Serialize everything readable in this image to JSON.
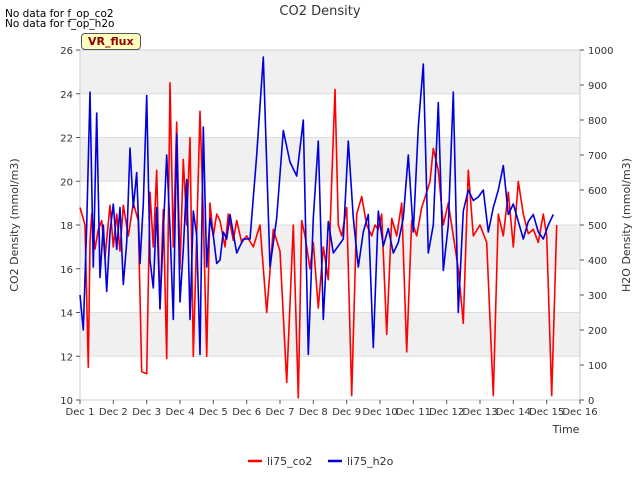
{
  "notes": [
    "No data for f_op_co2",
    "No data for f_op_h2o"
  ],
  "badge": "VR_flux",
  "chart_data": {
    "type": "line",
    "title": "CO2 Density",
    "xlabel": "Time",
    "ylabel": "CO2 Density (mmol/m3)",
    "ylabel_right": "H2O Density (mmol/m3)",
    "xlim": [
      1,
      16
    ],
    "ylim": [
      10,
      26
    ],
    "ylim_right": [
      0,
      1000
    ],
    "x_ticks": [
      "Dec 1",
      "Dec 2",
      "Dec 3",
      "Dec 4",
      "Dec 5",
      "Dec 6",
      "Dec 7",
      "Dec 8",
      "Dec 9",
      "Dec 10",
      "Dec 11",
      "Dec 12",
      "Dec 13",
      "Dec 14",
      "Dec 15",
      "Dec 16"
    ],
    "y_ticks": [
      10,
      12,
      14,
      16,
      18,
      20,
      22,
      24,
      26
    ],
    "y_ticks_right": [
      0,
      100,
      200,
      300,
      400,
      500,
      600,
      700,
      800,
      900,
      1000
    ],
    "grid": true,
    "background_bands": true,
    "legend": "bottom-center",
    "series": [
      {
        "name": "li75_co2",
        "axis": "left",
        "color": "#ff0000",
        "x": [
          1.0,
          1.15,
          1.25,
          1.3,
          1.35,
          1.45,
          1.55,
          1.65,
          1.75,
          1.9,
          2.0,
          2.1,
          2.2,
          2.3,
          2.45,
          2.6,
          2.75,
          2.85,
          3.0,
          3.1,
          3.2,
          3.3,
          3.4,
          3.5,
          3.6,
          3.7,
          3.8,
          3.9,
          4.0,
          4.1,
          4.2,
          4.3,
          4.4,
          4.5,
          4.6,
          4.7,
          4.8,
          4.9,
          5.0,
          5.1,
          5.2,
          5.35,
          5.45,
          5.6,
          5.7,
          5.85,
          6.0,
          6.2,
          6.4,
          6.6,
          6.8,
          7.0,
          7.2,
          7.4,
          7.55,
          7.65,
          7.75,
          7.9,
          8.0,
          8.15,
          8.3,
          8.45,
          8.55,
          8.65,
          8.75,
          8.85,
          9.0,
          9.15,
          9.3,
          9.45,
          9.6,
          9.75,
          9.85,
          9.95,
          10.05,
          10.2,
          10.35,
          10.5,
          10.65,
          10.8,
          10.95,
          11.1,
          11.25,
          11.4,
          11.5,
          11.6,
          11.75,
          11.9,
          12.05,
          12.2,
          12.35,
          12.5,
          12.65,
          12.8,
          13.0,
          13.2,
          13.4,
          13.55,
          13.7,
          13.85,
          14.0,
          14.15,
          14.3,
          14.45,
          14.6,
          14.75,
          14.9,
          15.0,
          15.15,
          15.3
        ],
        "y": [
          18.8,
          18.0,
          11.5,
          17.2,
          18.5,
          16.9,
          17.8,
          18.2,
          16.5,
          18.9,
          17.0,
          18.5,
          16.8,
          18.9,
          17.5,
          19.0,
          18.2,
          11.3,
          11.2,
          19.5,
          17.0,
          20.5,
          14.2,
          18.7,
          11.9,
          24.5,
          17.0,
          22.7,
          16.0,
          21.0,
          18.0,
          22.0,
          12.0,
          17.5,
          23.2,
          18.5,
          12.0,
          19.0,
          17.5,
          18.5,
          18.2,
          17.0,
          18.5,
          17.3,
          18.2,
          17.2,
          17.5,
          17.0,
          18.0,
          14.0,
          17.8,
          16.8,
          10.8,
          18.0,
          10.1,
          18.2,
          17.5,
          16.0,
          17.2,
          14.2,
          17.0,
          15.5,
          20.0,
          24.2,
          18.0,
          17.5,
          18.8,
          10.2,
          18.5,
          19.3,
          18.0,
          17.5,
          18.0,
          17.8,
          18.5,
          13.0,
          18.3,
          17.5,
          19.0,
          12.2,
          18.2,
          17.5,
          18.8,
          19.5,
          20.0,
          21.5,
          20.5,
          18.0,
          19.0,
          17.5,
          16.0,
          13.5,
          20.5,
          17.5,
          18.0,
          17.2,
          10.2,
          18.5,
          17.5,
          19.5,
          17.0,
          20.0,
          18.5,
          17.6,
          17.8,
          17.2,
          18.5,
          17.5,
          10.2,
          18.0
        ]
      },
      {
        "name": "li75_h2o",
        "axis": "right",
        "color": "#0000dd",
        "x": [
          1.0,
          1.1,
          1.2,
          1.3,
          1.4,
          1.5,
          1.6,
          1.7,
          1.8,
          1.9,
          2.0,
          2.1,
          2.2,
          2.3,
          2.4,
          2.5,
          2.6,
          2.7,
          2.8,
          2.9,
          3.0,
          3.1,
          3.2,
          3.3,
          3.4,
          3.5,
          3.6,
          3.7,
          3.8,
          3.9,
          4.0,
          4.1,
          4.2,
          4.3,
          4.4,
          4.5,
          4.6,
          4.7,
          4.8,
          4.9,
          5.0,
          5.1,
          5.2,
          5.3,
          5.4,
          5.5,
          5.7,
          5.9,
          6.1,
          6.3,
          6.5,
          6.7,
          6.9,
          7.1,
          7.3,
          7.5,
          7.7,
          7.85,
          8.0,
          8.15,
          8.3,
          8.45,
          8.6,
          8.75,
          8.9,
          9.05,
          9.2,
          9.35,
          9.5,
          9.65,
          9.8,
          9.95,
          10.1,
          10.25,
          10.4,
          10.55,
          10.7,
          10.85,
          11.0,
          11.15,
          11.3,
          11.45,
          11.6,
          11.75,
          11.9,
          12.05,
          12.2,
          12.35,
          12.5,
          12.65,
          12.8,
          12.95,
          13.1,
          13.25,
          13.4,
          13.55,
          13.7,
          13.85,
          14.0,
          14.15,
          14.3,
          14.45,
          14.6,
          14.75,
          14.9,
          15.05,
          15.2
        ],
        "y": [
          300,
          200,
          500,
          880,
          380,
          820,
          350,
          500,
          310,
          480,
          560,
          430,
          550,
          330,
          450,
          720,
          550,
          650,
          390,
          560,
          870,
          400,
          320,
          550,
          260,
          480,
          700,
          490,
          230,
          760,
          280,
          430,
          630,
          230,
          540,
          470,
          130,
          780,
          380,
          520,
          470,
          390,
          400,
          480,
          460,
          530,
          420,
          460,
          460,
          700,
          980,
          380,
          520,
          770,
          680,
          640,
          800,
          130,
          520,
          740,
          230,
          510,
          420,
          440,
          460,
          740,
          520,
          380,
          480,
          530,
          150,
          540,
          440,
          490,
          420,
          450,
          520,
          700,
          480,
          780,
          960,
          420,
          500,
          850,
          370,
          500,
          880,
          250,
          540,
          600,
          570,
          580,
          600,
          480,
          550,
          600,
          670,
          530,
          560,
          510,
          460,
          510,
          530,
          480,
          460,
          500,
          530
        ]
      }
    ]
  }
}
